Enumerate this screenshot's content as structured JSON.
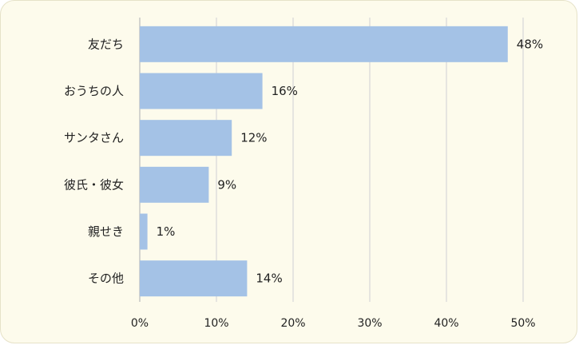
{
  "chart_data": {
    "type": "bar",
    "orientation": "horizontal",
    "categories": [
      "友だち",
      "おうちの人",
      "サンタさん",
      "彼氏・彼女",
      "親せき",
      "その他"
    ],
    "values": [
      48,
      16,
      12,
      9,
      1,
      14
    ],
    "value_labels": [
      "48%",
      "16%",
      "12%",
      "9%",
      "1%",
      "14%"
    ],
    "xticks": [
      0,
      10,
      20,
      30,
      40,
      50
    ],
    "xtick_labels": [
      "0%",
      "10%",
      "20%",
      "30%",
      "40%",
      "50%"
    ],
    "xlim": [
      0,
      50
    ],
    "grid": true,
    "legend": "none",
    "bar_color": "#a4c2e6",
    "background_color": "#fdfbec"
  }
}
